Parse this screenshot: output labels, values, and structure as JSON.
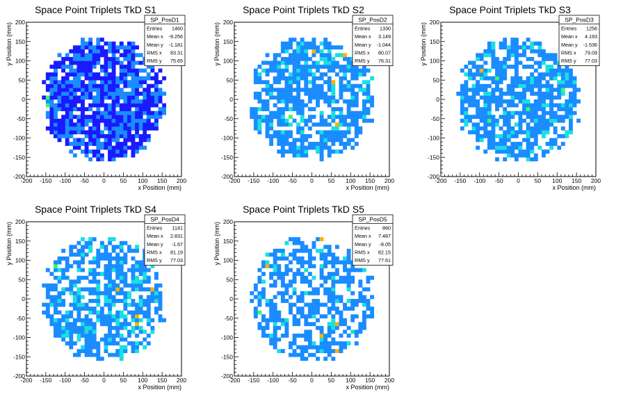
{
  "chart_data": [
    {
      "type": "heatmap",
      "title": "Space Point Triplets TkD S1",
      "xlabel": "x Position (mm)",
      "ylabel": "y Position (mm)",
      "xlim": [
        -200,
        200
      ],
      "ylim": [
        -200,
        200
      ],
      "xticks": [
        -200,
        -150,
        -100,
        -50,
        0,
        50,
        100,
        150,
        200
      ],
      "yticks": [
        -200,
        -150,
        -100,
        -50,
        0,
        50,
        100,
        150,
        200
      ],
      "bin_size": 10,
      "disk_radius": 160,
      "stats": {
        "name": "SP_PosD1",
        "rows": [
          {
            "label": "Entries",
            "value": "1460"
          },
          {
            "label": "Mean x",
            "value": "-9.256"
          },
          {
            "label": "Mean y",
            "value": "-1.181"
          },
          {
            "label": "RMS x",
            "value": "83.31"
          },
          {
            "label": "RMS y",
            "value": "75.65"
          }
        ]
      },
      "hot_bins": [
        [
          -150,
          -20,
          4
        ],
        [
          -150,
          0,
          4
        ]
      ]
    },
    {
      "type": "heatmap",
      "title": "Space Point Triplets TkD S2",
      "xlabel": "x Position (mm)",
      "ylabel": "y Position (mm)",
      "xlim": [
        -200,
        200
      ],
      "ylim": [
        -200,
        200
      ],
      "xticks": [
        -200,
        -150,
        -100,
        -50,
        0,
        50,
        100,
        150,
        200
      ],
      "yticks": [
        -200,
        -150,
        -100,
        -50,
        0,
        50,
        100,
        150,
        200
      ],
      "bin_size": 10,
      "disk_radius": 160,
      "stats": {
        "name": "SP_PosD2",
        "rows": [
          {
            "label": "Entries",
            "value": "1330"
          },
          {
            "label": "Mean x",
            "value": "3.149"
          },
          {
            "label": "Mean y",
            "value": "-1.044"
          },
          {
            "label": "RMS x",
            "value": "80.07"
          },
          {
            "label": "RMS y",
            "value": "76.31"
          }
        ]
      },
      "hot_bins": [
        [
          0,
          120,
          5
        ],
        [
          80,
          110,
          5
        ],
        [
          50,
          40,
          5
        ],
        [
          60,
          -70,
          5
        ],
        [
          -60,
          -50,
          4
        ]
      ]
    },
    {
      "type": "heatmap",
      "title": "Space Point Triplets TkD S3",
      "xlabel": "x Position (mm)",
      "ylabel": "y Position (mm)",
      "xlim": [
        -200,
        200
      ],
      "ylim": [
        -200,
        200
      ],
      "xticks": [
        -200,
        -150,
        -100,
        -50,
        0,
        50,
        100,
        150,
        200
      ],
      "yticks": [
        -200,
        -150,
        -100,
        -50,
        0,
        50,
        100,
        150,
        200
      ],
      "bin_size": 10,
      "disk_radius": 160,
      "stats": {
        "name": "SP_PosD3",
        "rows": [
          {
            "label": "Entries",
            "value": "1256"
          },
          {
            "label": "Mean x",
            "value": "4.193"
          },
          {
            "label": "Mean y",
            "value": "-1.536"
          },
          {
            "label": "RMS x",
            "value": "79.09"
          },
          {
            "label": "RMS y",
            "value": "77.03"
          }
        ]
      },
      "hot_bins": [
        [
          -100,
          70,
          5
        ],
        [
          -60,
          50,
          4
        ],
        [
          20,
          -30,
          4
        ],
        [
          -80,
          -60,
          4
        ],
        [
          110,
          20,
          4
        ]
      ]
    },
    {
      "type": "heatmap",
      "title": "Space Point Triplets TkD S4",
      "xlabel": "x Position (mm)",
      "ylabel": "y Position (mm)",
      "xlim": [
        -200,
        200
      ],
      "ylim": [
        -200,
        200
      ],
      "xticks": [
        -200,
        -150,
        -100,
        -50,
        0,
        50,
        100,
        150,
        200
      ],
      "yticks": [
        -200,
        -150,
        -100,
        -50,
        0,
        50,
        100,
        150,
        200
      ],
      "bin_size": 10,
      "disk_radius": 160,
      "stats": {
        "name": "SP_PosD4",
        "rows": [
          {
            "label": "Entries",
            "value": "1141"
          },
          {
            "label": "Mean x",
            "value": "2.831"
          },
          {
            "label": "Mean y",
            "value": "-1.67"
          },
          {
            "label": "RMS x",
            "value": "81.19"
          },
          {
            "label": "RMS y",
            "value": "77.03"
          }
        ]
      },
      "hot_bins": [
        [
          30,
          20,
          5
        ],
        [
          80,
          -50,
          5
        ],
        [
          80,
          -70,
          5
        ],
        [
          120,
          20,
          5
        ],
        [
          -130,
          80,
          4
        ]
      ]
    },
    {
      "type": "heatmap",
      "title": "Space Point Triplets TkD S5",
      "xlabel": "x Position (mm)",
      "ylabel": "y Position (mm)",
      "xlim": [
        -200,
        200
      ],
      "ylim": [
        -200,
        200
      ],
      "xticks": [
        -200,
        -150,
        -100,
        -50,
        0,
        50,
        100,
        150,
        200
      ],
      "yticks": [
        -200,
        -150,
        -100,
        -50,
        0,
        50,
        100,
        150,
        200
      ],
      "bin_size": 10,
      "disk_radius": 160,
      "stats": {
        "name": "SP_PosD5",
        "rows": [
          {
            "label": "Entries",
            "value": "860"
          },
          {
            "label": "Mean x",
            "value": "7.487"
          },
          {
            "label": "Mean y",
            "value": "-8.05"
          },
          {
            "label": "RMS x",
            "value": "82.15"
          },
          {
            "label": "RMS y",
            "value": "77.61"
          }
        ]
      },
      "hot_bins": [
        [
          20,
          150,
          5
        ],
        [
          -120,
          80,
          5
        ],
        [
          60,
          -70,
          5
        ],
        [
          20,
          -100,
          5
        ],
        [
          60,
          -140,
          5
        ],
        [
          -140,
          -40,
          4
        ]
      ]
    }
  ],
  "palette": [
    "#ffffff",
    "#1a1aff",
    "#1a8cff",
    "#17e0e0",
    "#33ff66",
    "#ffb000",
    "#e01010"
  ]
}
